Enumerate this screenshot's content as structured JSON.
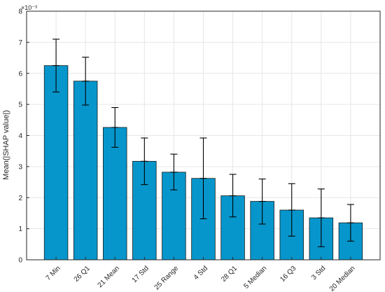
{
  "chart_data": {
    "type": "bar",
    "title": "",
    "xlabel": "",
    "ylabel": "Mean(|SHAP value|)",
    "y_exponent_label": "×10⁻³",
    "y_scale_factor": 0.001,
    "ylim": [
      0,
      8
    ],
    "yticks": [
      0,
      1,
      2,
      3,
      4,
      5,
      6,
      7,
      8
    ],
    "categories": [
      "7 Min",
      "26 Q1",
      "21 Mean",
      "17 Std",
      "25 Range",
      "4 Std",
      "28 Q1",
      "5 Median",
      "16 Q3",
      "3 Std",
      "20 Median"
    ],
    "values": [
      6.25,
      5.75,
      4.26,
      3.17,
      2.82,
      2.62,
      2.06,
      1.88,
      1.6,
      1.35,
      1.19
    ],
    "error_low": [
      5.4,
      4.98,
      3.62,
      2.42,
      2.25,
      1.32,
      1.38,
      1.15,
      0.76,
      0.42,
      0.6
    ],
    "error_high": [
      7.1,
      6.52,
      4.9,
      3.92,
      3.4,
      3.92,
      2.75,
      2.6,
      2.45,
      2.28,
      1.78
    ],
    "grid": true,
    "legend": "none",
    "colors": {
      "bar_fill": "#0696cc",
      "bar_edge": "#1a1a1a",
      "error_bar": "#000000",
      "grid": "#e6e6e6",
      "axis": "#262626"
    }
  }
}
